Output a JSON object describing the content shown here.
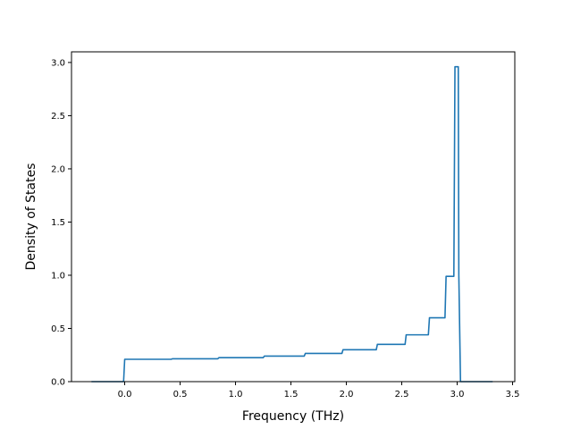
{
  "chart_data": {
    "type": "line",
    "title": "",
    "xlabel": "Frequency (THz)",
    "ylabel": "Density of States",
    "xlim": [
      -0.48,
      3.52
    ],
    "ylim": [
      0.0,
      3.1
    ],
    "xticks": [
      0.0,
      0.5,
      1.0,
      1.5,
      2.0,
      2.5,
      3.0,
      3.5
    ],
    "xtick_labels": [
      "0.0",
      "0.5",
      "1.0",
      "1.5",
      "2.0",
      "2.5",
      "3.0",
      "3.5"
    ],
    "yticks": [
      0.0,
      0.5,
      1.0,
      1.5,
      2.0,
      2.5,
      3.0
    ],
    "ytick_labels": [
      "0.0",
      "0.5",
      "1.0",
      "1.5",
      "2.0",
      "2.5",
      "3.0"
    ],
    "grid": false,
    "legend": "none",
    "line_color": "#1f77b4",
    "series": [
      {
        "x": [
          -0.3,
          -0.01,
          0.0,
          0.42,
          0.43,
          0.84,
          0.85,
          1.25,
          1.26,
          1.62,
          1.63,
          1.96,
          1.97,
          2.27,
          2.28,
          2.53,
          2.54,
          2.74,
          2.75,
          2.89,
          2.9,
          2.97,
          2.98,
          3.01,
          3.015,
          3.03,
          3.04,
          3.32
        ],
        "y": [
          0.0,
          0.0,
          0.21,
          0.21,
          0.215,
          0.215,
          0.225,
          0.225,
          0.24,
          0.24,
          0.265,
          0.265,
          0.3,
          0.3,
          0.35,
          0.35,
          0.44,
          0.44,
          0.6,
          0.6,
          0.99,
          0.99,
          2.96,
          2.96,
          1.0,
          0.0,
          0.0,
          0.0
        ]
      }
    ]
  }
}
